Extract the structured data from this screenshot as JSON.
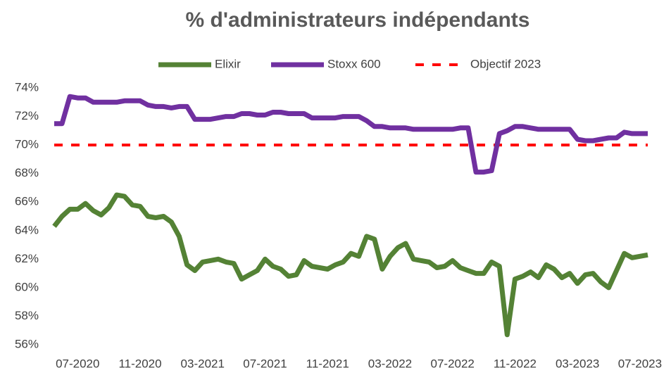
{
  "chart_data": {
    "type": "line",
    "title": "% d'administrateurs indépendants",
    "categories": [
      null,
      null,
      null,
      "07-2020",
      null,
      null,
      null,
      null,
      null,
      null,
      null,
      "11-2020",
      null,
      null,
      null,
      null,
      null,
      null,
      null,
      "03-2021",
      null,
      null,
      null,
      null,
      null,
      null,
      null,
      "07-2021",
      null,
      null,
      null,
      null,
      null,
      null,
      null,
      "11-2021",
      null,
      null,
      null,
      null,
      null,
      null,
      null,
      "03-2022",
      null,
      null,
      null,
      null,
      null,
      null,
      null,
      "07-2022",
      null,
      null,
      null,
      null,
      null,
      null,
      null,
      "11-2022",
      null,
      null,
      null,
      null,
      null,
      null,
      null,
      "03-2023",
      null,
      null,
      null,
      null,
      null,
      null,
      null,
      "07-2023",
      null
    ],
    "series": [
      {
        "name": "Elixir",
        "color": "#548235",
        "dash": false,
        "values": [
          64.3,
          65.0,
          65.5,
          65.5,
          65.9,
          65.4,
          65.1,
          65.6,
          66.5,
          66.4,
          65.8,
          65.7,
          65.0,
          64.9,
          65.0,
          64.6,
          63.6,
          61.6,
          61.2,
          61.8,
          61.9,
          62.0,
          61.8,
          61.7,
          60.6,
          60.9,
          61.2,
          62.0,
          61.5,
          61.3,
          60.8,
          60.9,
          61.9,
          61.5,
          61.4,
          61.3,
          61.6,
          61.8,
          62.4,
          62.2,
          63.6,
          63.4,
          61.3,
          62.2,
          62.8,
          63.1,
          62.0,
          61.9,
          61.8,
          61.4,
          61.5,
          61.9,
          61.4,
          61.2,
          61.0,
          61.0,
          61.8,
          61.5,
          56.7,
          60.6,
          60.8,
          61.1,
          60.7,
          61.6,
          61.3,
          60.7,
          61.0,
          60.3,
          60.9,
          61.0,
          60.4,
          60.0,
          61.2,
          62.4,
          62.1,
          62.2,
          62.3
        ]
      },
      {
        "name": "Stoxx 600",
        "color": "#7030a0",
        "dash": false,
        "values": [
          71.5,
          71.5,
          73.4,
          73.3,
          73.3,
          73.0,
          73.0,
          73.0,
          73.0,
          73.1,
          73.1,
          73.1,
          72.8,
          72.7,
          72.7,
          72.6,
          72.7,
          72.7,
          71.8,
          71.8,
          71.8,
          71.9,
          72.0,
          72.0,
          72.2,
          72.2,
          72.1,
          72.1,
          72.3,
          72.3,
          72.2,
          72.2,
          72.2,
          71.9,
          71.9,
          71.9,
          71.9,
          72.0,
          72.0,
          72.0,
          71.7,
          71.3,
          71.3,
          71.2,
          71.2,
          71.2,
          71.1,
          71.1,
          71.1,
          71.1,
          71.1,
          71.1,
          71.2,
          71.2,
          68.1,
          68.1,
          68.2,
          70.8,
          71.0,
          71.3,
          71.3,
          71.2,
          71.1,
          71.1,
          71.1,
          71.1,
          71.1,
          70.4,
          70.3,
          70.3,
          70.4,
          70.5,
          70.5,
          70.9,
          70.8,
          70.8,
          70.8
        ]
      },
      {
        "name": "Objectif 2023",
        "color": "#ff0000",
        "dash": true,
        "values": [
          70,
          70,
          70,
          70,
          70,
          70,
          70,
          70,
          70,
          70,
          70,
          70,
          70,
          70,
          70,
          70,
          70,
          70,
          70,
          70,
          70,
          70,
          70,
          70,
          70,
          70,
          70,
          70,
          70,
          70,
          70,
          70,
          70,
          70,
          70,
          70,
          70,
          70,
          70,
          70,
          70,
          70,
          70,
          70,
          70,
          70,
          70,
          70,
          70,
          70,
          70,
          70,
          70,
          70,
          70,
          70,
          70,
          70,
          70,
          70,
          70,
          70,
          70,
          70,
          70,
          70,
          70,
          70,
          70,
          70,
          70,
          70,
          70,
          70,
          70,
          70,
          70
        ]
      }
    ],
    "ylim": [
      56,
      74
    ],
    "yticks": [
      {
        "value": 56,
        "label": "56%"
      },
      {
        "value": 58,
        "label": "58%"
      },
      {
        "value": 60,
        "label": "60%"
      },
      {
        "value": 62,
        "label": "62%"
      },
      {
        "value": 64,
        "label": "64%"
      },
      {
        "value": 66,
        "label": "66%"
      },
      {
        "value": 68,
        "label": "68%"
      },
      {
        "value": 70,
        "label": "70%"
      },
      {
        "value": 72,
        "label": "72%"
      },
      {
        "value": 74,
        "label": "74%"
      }
    ],
    "grid": false,
    "legend": "top"
  }
}
